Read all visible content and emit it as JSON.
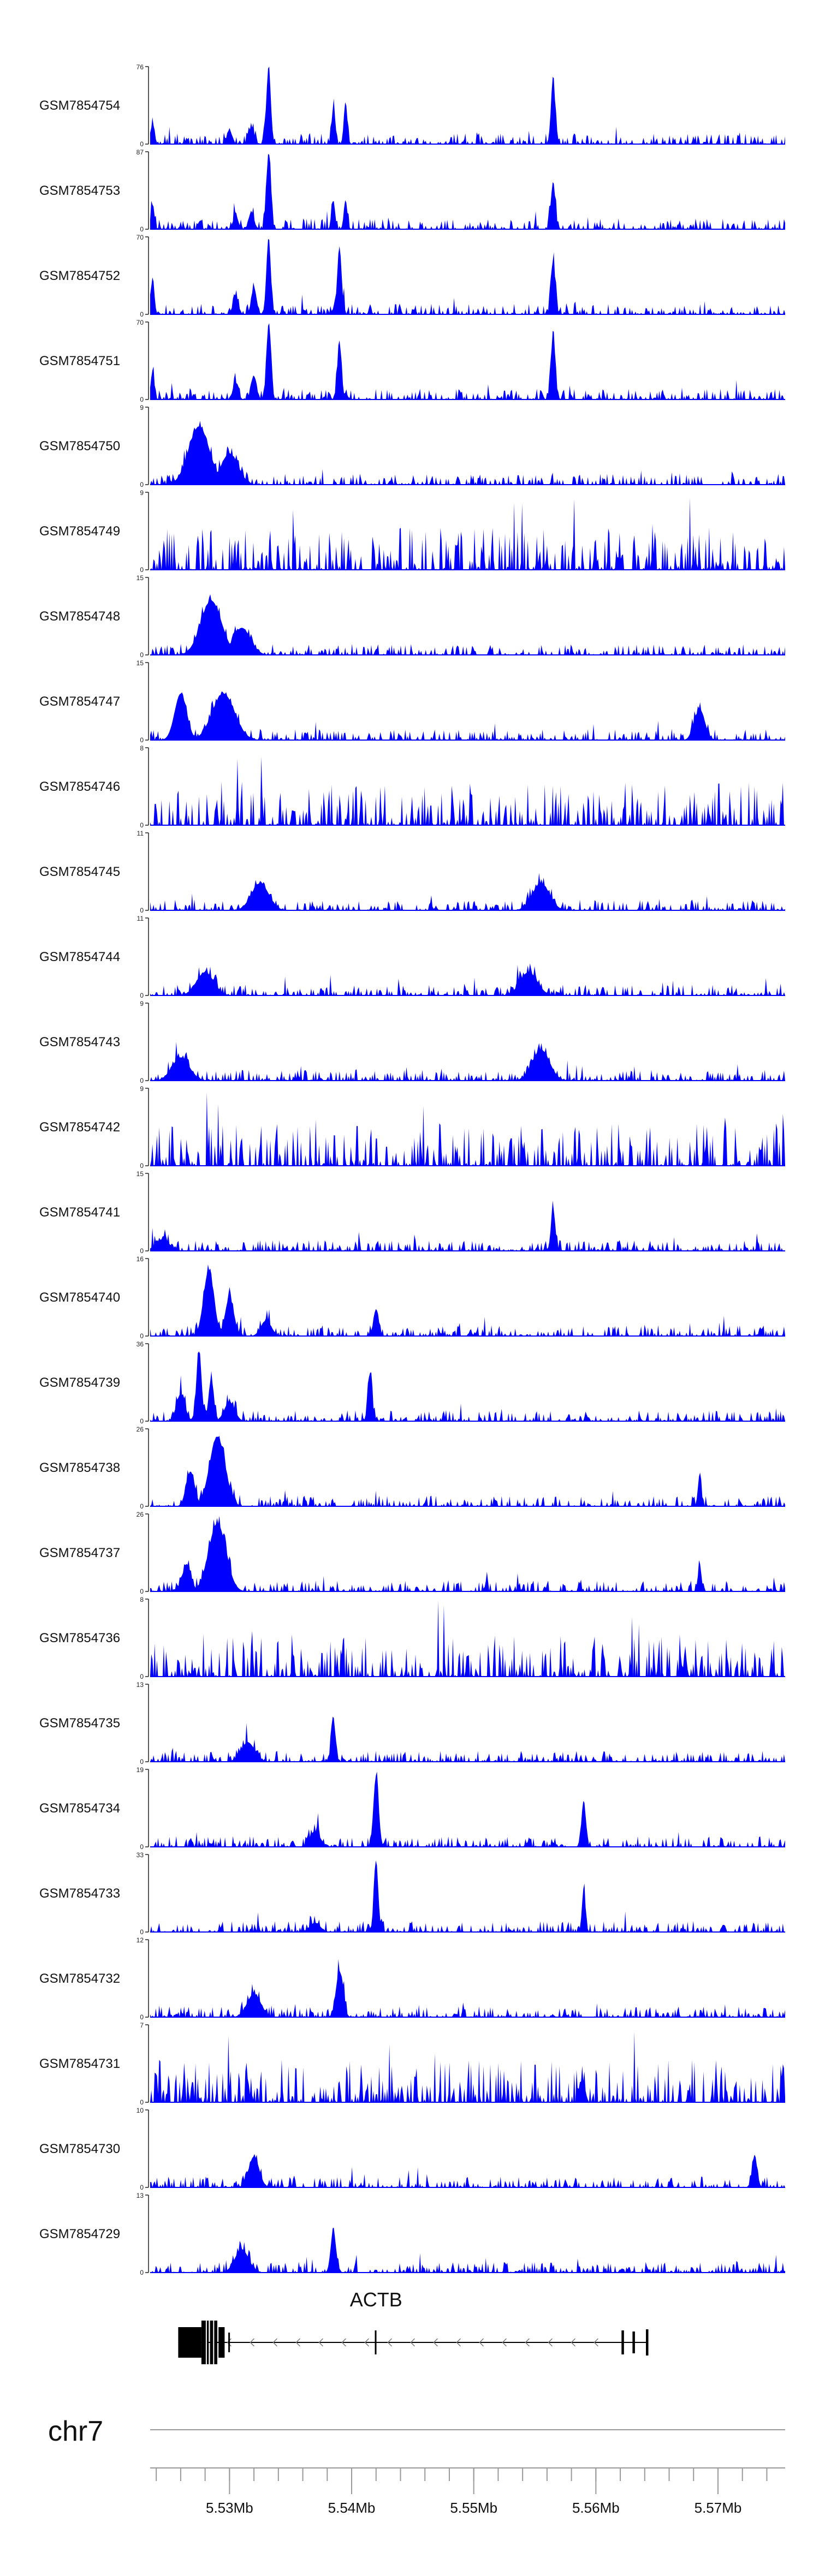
{
  "chart_data": {
    "type": "area",
    "title": "",
    "xlabel": "",
    "chromosome": "chr7",
    "xlim_mb": [
      5.5235,
      5.5755
    ],
    "series_color": "#0000ff",
    "tracks": [
      {
        "name": "GSM7854754",
        "ymax": 76,
        "ymin": 0,
        "peaks": [
          [
            5.5332,
            1.0,
            0.25
          ],
          [
            5.5385,
            0.48,
            0.2
          ],
          [
            5.5395,
            0.55,
            0.2
          ],
          [
            5.5565,
            0.82,
            0.25
          ],
          [
            5.5237,
            0.28,
            0.2
          ],
          [
            5.53,
            0.18,
            0.3
          ],
          [
            5.5318,
            0.22,
            0.3
          ]
        ]
      },
      {
        "name": "GSM7854753",
        "ymax": 87,
        "ymin": 0,
        "peaks": [
          [
            5.5332,
            1.0,
            0.25
          ],
          [
            5.5385,
            0.38,
            0.2
          ],
          [
            5.5395,
            0.38,
            0.2
          ],
          [
            5.5565,
            0.62,
            0.25
          ],
          [
            5.5237,
            0.32,
            0.2
          ],
          [
            5.5305,
            0.18,
            0.3
          ],
          [
            5.5318,
            0.22,
            0.3
          ]
        ]
      },
      {
        "name": "GSM7854752",
        "ymax": 70,
        "ymin": 0,
        "peaks": [
          [
            5.5332,
            1.0,
            0.25
          ],
          [
            5.539,
            0.88,
            0.25
          ],
          [
            5.5565,
            0.7,
            0.25
          ],
          [
            5.5237,
            0.48,
            0.2
          ],
          [
            5.5305,
            0.25,
            0.3
          ],
          [
            5.532,
            0.35,
            0.3
          ]
        ]
      },
      {
        "name": "GSM7854751",
        "ymax": 70,
        "ymin": 0,
        "peaks": [
          [
            5.5332,
            0.98,
            0.25
          ],
          [
            5.539,
            0.72,
            0.25
          ],
          [
            5.5565,
            0.85,
            0.25
          ],
          [
            5.5237,
            0.38,
            0.2
          ],
          [
            5.5305,
            0.22,
            0.3
          ],
          [
            5.532,
            0.3,
            0.3
          ]
        ]
      },
      {
        "name": "GSM7854750",
        "ymax": 9,
        "ymin": 0,
        "peaks": [
          [
            5.5275,
            0.75,
            1.2
          ],
          [
            5.53,
            0.4,
            1.0
          ]
        ]
      },
      {
        "name": "GSM7854749",
        "ymax": 9,
        "ymin": 0,
        "peaks": []
      },
      {
        "name": "GSM7854748",
        "ymax": 15,
        "ymin": 0,
        "peaks": [
          [
            5.5285,
            0.7,
            1.2
          ],
          [
            5.531,
            0.35,
            1.0
          ]
        ]
      },
      {
        "name": "GSM7854747",
        "ymax": 15,
        "ymin": 0,
        "peaks": [
          [
            5.526,
            0.6,
            0.7
          ],
          [
            5.5295,
            0.6,
            1.3
          ],
          [
            5.5685,
            0.4,
            0.6
          ]
        ]
      },
      {
        "name": "GSM7854746",
        "ymax": 8,
        "ymin": 0,
        "peaks": []
      },
      {
        "name": "GSM7854745",
        "ymax": 11,
        "ymin": 0,
        "peaks": [
          [
            5.5325,
            0.35,
            1.0
          ],
          [
            5.5555,
            0.35,
            1.0
          ]
        ]
      },
      {
        "name": "GSM7854744",
        "ymax": 11,
        "ymin": 0,
        "peaks": [
          [
            5.528,
            0.3,
            1.0
          ],
          [
            5.5545,
            0.3,
            1.0
          ]
        ]
      },
      {
        "name": "GSM7854743",
        "ymax": 9,
        "ymin": 0,
        "peaks": [
          [
            5.5555,
            0.4,
            1.0
          ],
          [
            5.526,
            0.3,
            1.0
          ]
        ]
      },
      {
        "name": "GSM7854742",
        "ymax": 9,
        "ymin": 0,
        "peaks": []
      },
      {
        "name": "GSM7854741",
        "ymax": 15,
        "ymin": 0,
        "peaks": [
          [
            5.5565,
            0.55,
            0.25
          ],
          [
            5.5245,
            0.15,
            0.8
          ]
        ]
      },
      {
        "name": "GSM7854740",
        "ymax": 16,
        "ymin": 0,
        "peaks": [
          [
            5.5283,
            0.85,
            0.6
          ],
          [
            5.53,
            0.5,
            0.5
          ],
          [
            5.542,
            0.35,
            0.3
          ],
          [
            5.533,
            0.2,
            0.6
          ]
        ]
      },
      {
        "name": "GSM7854739",
        "ymax": 36,
        "ymin": 0,
        "peaks": [
          [
            5.5275,
            0.9,
            0.3
          ],
          [
            5.5285,
            0.55,
            0.3
          ],
          [
            5.526,
            0.35,
            0.5
          ],
          [
            5.5415,
            0.6,
            0.25
          ],
          [
            5.53,
            0.25,
            0.6
          ]
        ]
      },
      {
        "name": "GSM7854738",
        "ymax": 26,
        "ymin": 0,
        "peaks": [
          [
            5.529,
            0.9,
            0.9
          ],
          [
            5.5268,
            0.45,
            0.5
          ],
          [
            5.5685,
            0.4,
            0.2
          ]
        ]
      },
      {
        "name": "GSM7854737",
        "ymax": 26,
        "ymin": 0,
        "peaks": [
          [
            5.529,
            0.88,
            1.0
          ],
          [
            5.5265,
            0.35,
            0.5
          ],
          [
            5.5685,
            0.35,
            0.2
          ]
        ]
      },
      {
        "name": "GSM7854736",
        "ymax": 8,
        "ymin": 0,
        "peaks": []
      },
      {
        "name": "GSM7854735",
        "ymax": 13,
        "ymin": 0,
        "peaks": [
          [
            5.5385,
            0.55,
            0.25
          ],
          [
            5.5315,
            0.25,
            0.8
          ]
        ]
      },
      {
        "name": "GSM7854734",
        "ymax": 19,
        "ymin": 0,
        "peaks": [
          [
            5.542,
            0.92,
            0.3
          ],
          [
            5.559,
            0.6,
            0.25
          ],
          [
            5.537,
            0.2,
            0.6
          ]
        ]
      },
      {
        "name": "GSM7854733",
        "ymax": 33,
        "ymin": 0,
        "peaks": [
          [
            5.542,
            0.93,
            0.25
          ],
          [
            5.559,
            0.55,
            0.2
          ],
          [
            5.537,
            0.12,
            0.6
          ]
        ]
      },
      {
        "name": "GSM7854732",
        "ymax": 12,
        "ymin": 0,
        "peaks": [
          [
            5.539,
            0.6,
            0.4
          ],
          [
            5.532,
            0.3,
            0.8
          ]
        ]
      },
      {
        "name": "GSM7854731",
        "ymax": 7,
        "ymin": 0,
        "peaks": []
      },
      {
        "name": "GSM7854730",
        "ymax": 10,
        "ymin": 0,
        "peaks": [
          [
            5.532,
            0.4,
            0.6
          ],
          [
            5.573,
            0.4,
            0.3
          ]
        ]
      },
      {
        "name": "GSM7854729",
        "ymax": 13,
        "ymin": 0,
        "peaks": [
          [
            5.5385,
            0.55,
            0.3
          ],
          [
            5.531,
            0.3,
            0.8
          ]
        ]
      }
    ],
    "gene": {
      "name": "ACTB",
      "strand": "-",
      "start_mb": 5.5258,
      "end_mb": 5.5643
    },
    "x_ticks": [
      5.53,
      5.54,
      5.55,
      5.56,
      5.57
    ],
    "x_tick_labels": [
      "5.53Mb",
      "5.54Mb",
      "5.55Mb",
      "5.56Mb",
      "5.57Mb"
    ]
  }
}
